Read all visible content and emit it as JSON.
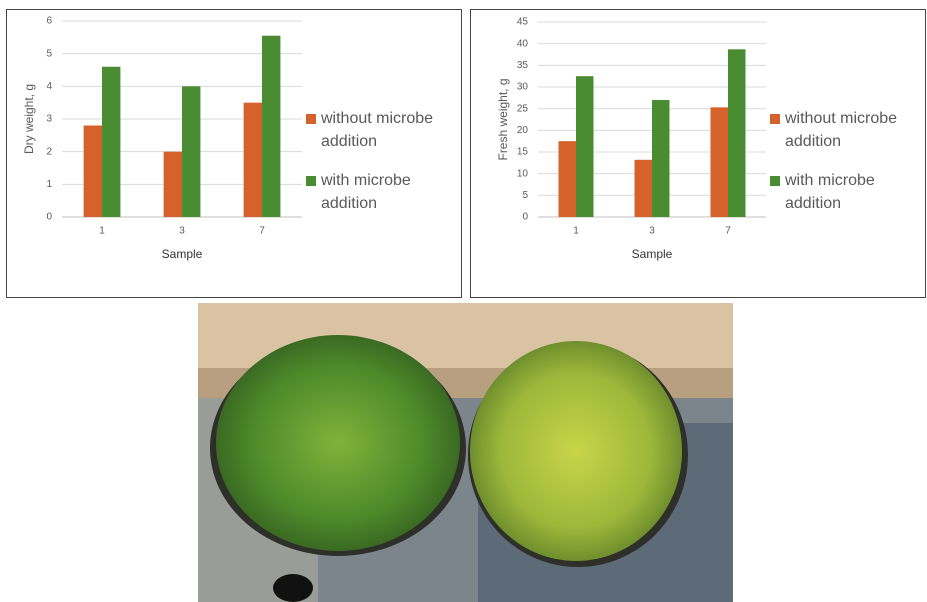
{
  "chart_data": [
    {
      "type": "bar",
      "x_label": "Sample",
      "y_label": "Dry weight, g",
      "categories": [
        "1",
        "3",
        "7"
      ],
      "series": [
        {
          "name": "without microbe addition",
          "color": "#d4622a",
          "values": [
            2.8,
            2.0,
            3.5
          ]
        },
        {
          "name": "with microbe addition",
          "color": "#4a8c32",
          "values": [
            4.6,
            4.0,
            5.55
          ]
        }
      ],
      "ylim": [
        0,
        6
      ],
      "yticks": [
        0,
        1,
        2,
        3,
        4,
        5,
        6
      ],
      "grid": true,
      "legend": "right"
    },
    {
      "type": "bar",
      "x_label": "Sample",
      "y_label": "Fresh weight, g",
      "categories": [
        "1",
        "3",
        "7"
      ],
      "series": [
        {
          "name": "without microbe addition",
          "color": "#d4622a",
          "values": [
            17.5,
            13.2,
            25.3
          ]
        },
        {
          "name": "with microbe addition",
          "color": "#4a8c32",
          "values": [
            32.5,
            27,
            38.7
          ]
        }
      ],
      "ylim": [
        0,
        45
      ],
      "yticks": [
        0,
        5,
        10,
        15,
        20,
        25,
        30,
        35,
        40,
        45
      ],
      "grid": true,
      "legend": "right"
    }
  ]
}
